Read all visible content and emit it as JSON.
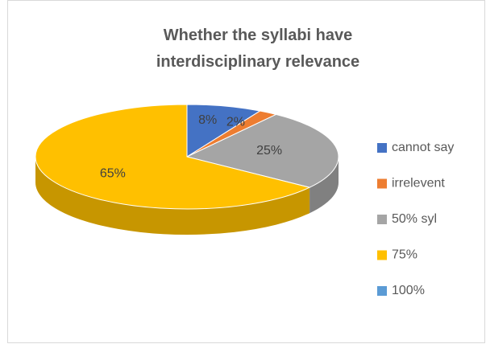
{
  "chart_data": {
    "type": "pie",
    "title": "Whether the syllabi have interdisciplinary relevance",
    "categories": [
      "cannot say",
      "irrelevent",
      "50% syl",
      "75%",
      "100%"
    ],
    "values": [
      8,
      2,
      25,
      65,
      0
    ],
    "value_labels": [
      "8%",
      "2%",
      "25%",
      "65%",
      null
    ],
    "colors": [
      "#4472c4",
      "#ed7d31",
      "#a5a5a5",
      "#ffc000",
      "#5b9bd5"
    ],
    "legend": "right"
  }
}
